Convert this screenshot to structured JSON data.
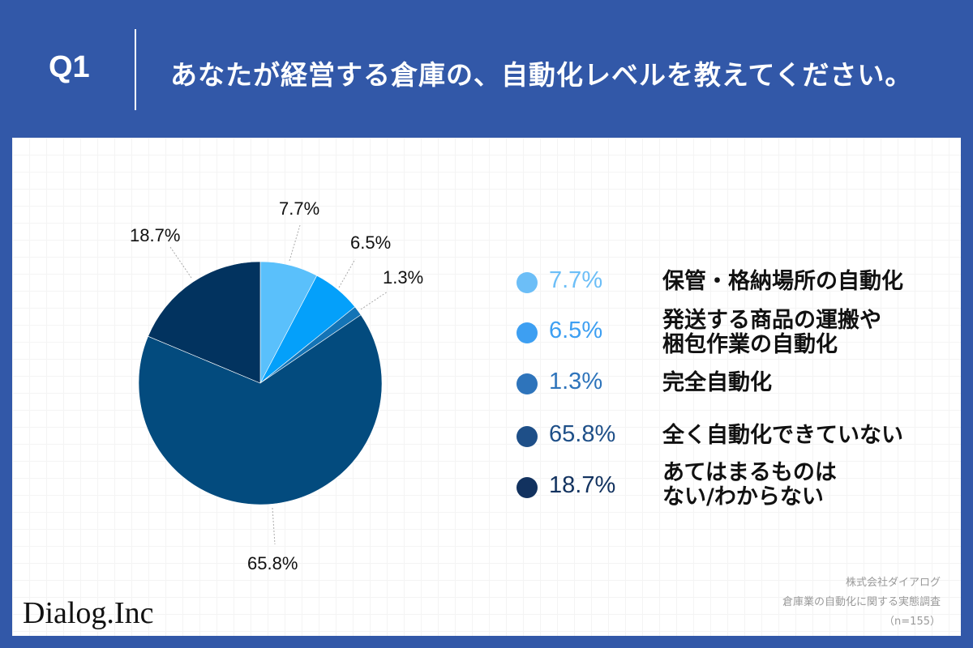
{
  "header": {
    "question_number": "Q1",
    "question_text": "あなたが経営する倉庫の、自動化レベルを教えてください。"
  },
  "chart_data": {
    "type": "pie",
    "title": "あなたが経営する倉庫の、自動化レベルを教えてください。",
    "categories": [
      "保管・格納場所の自動化",
      "発送する商品の運搬や梱包作業の自動化",
      "完全自動化",
      "全く自動化できていない",
      "あてはまるものはない/わからない"
    ],
    "values": [
      7.7,
      6.5,
      1.3,
      65.8,
      18.7
    ],
    "unit": "%",
    "colors": [
      "#5ac0fb",
      "#04a0fa",
      "#1474b6",
      "#034b7e",
      "#02335f"
    ],
    "legend_position": "right",
    "n": 155
  },
  "slice_labels": [
    "7.7%",
    "6.5%",
    "1.3%",
    "65.8%",
    "18.7%"
  ],
  "legend": {
    "items": [
      {
        "pct": "7.7%",
        "line1": "保管・格納場所の自動化",
        "line2": "",
        "dot_color": "#6cbef7",
        "text_color": "#6cbef7"
      },
      {
        "pct": "6.5%",
        "line1": "発送する商品の運搬や",
        "line2": "梱包作業の自動化",
        "dot_color": "#3d9ff2",
        "text_color": "#3d9ff2"
      },
      {
        "pct": "1.3%",
        "line1": "完全自動化",
        "line2": "",
        "dot_color": "#2e74bb",
        "text_color": "#2e74bb"
      },
      {
        "pct": "65.8%",
        "line1": "全く自動化できていない",
        "line2": "",
        "dot_color": "#1e4f88",
        "text_color": "#1e4f88"
      },
      {
        "pct": "18.7%",
        "line1": "あてはまるものは",
        "line2": "ない/わからない",
        "dot_color": "#12325f",
        "text_color": "#12325f"
      }
    ]
  },
  "footer": {
    "logo": "Dialog.Inc",
    "source_company": "株式会社ダイアログ",
    "source_survey": "倉庫業の自動化に関する実態調査",
    "sample_size": "（n=155）"
  },
  "colors": {
    "background": "#3258a8",
    "card": "#ffffff"
  }
}
